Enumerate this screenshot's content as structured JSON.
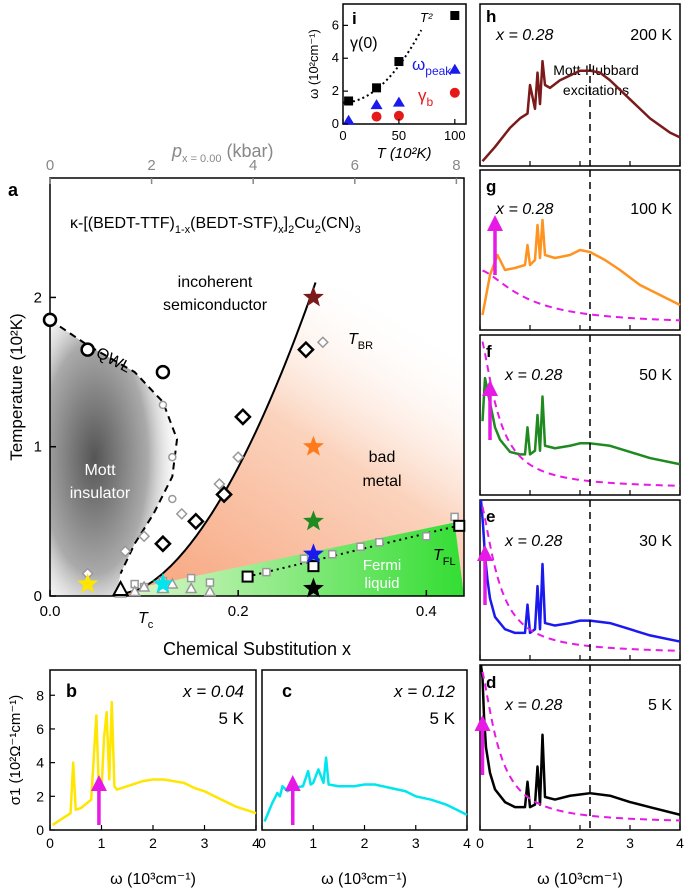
{
  "chart_data": [
    {
      "panel": "a",
      "type": "scatter",
      "title": "κ-[(BEDT-TTF)1-x(BEDT-STF)x]2Cu2(CN)3",
      "title_parts": {
        "p1": "κ-[(BEDT-TTF)",
        "s1": "1-x",
        "p2": "(BEDT-STF)",
        "s2": "x",
        "p3": "]",
        "s3": "2",
        "p4": "Cu",
        "s4": "2",
        "p5": "(CN)",
        "s5": "3"
      },
      "xlabel": "Chemical Substitution x",
      "ylabel": "Temperature (10²K)",
      "top_xlabel": "p",
      "top_xlabel_sub": "x = 0.00",
      "top_xlabel_unit": "(kbar)",
      "xlim": [
        0,
        0.44
      ],
      "ylim": [
        0,
        2.8
      ],
      "top_xlim": [
        0,
        8.15
      ],
      "x_ticks": [
        "0.0",
        "0.2",
        "0.4"
      ],
      "y_ticks": [
        "0",
        "1",
        "2"
      ],
      "top_ticks": [
        "0",
        "2",
        "4",
        "6",
        "8"
      ],
      "regions": {
        "mott": "Mott insulator",
        "mott_l1": "Mott",
        "mott_l2": "insulator",
        "incoherent_l1": "incoherent",
        "incoherent_l2": "semiconductor",
        "badmetal_l1": "bad",
        "badmetal_l2": "metal",
        "fermi_l1": "Fermi",
        "fermi_l2": "liquid"
      },
      "line_labels": {
        "qwl": "QWL",
        "tbr": "T",
        "tbr_sub": "BR",
        "tfl": "T",
        "tfl_sub": "FL",
        "tc": "T",
        "tc_sub": "c"
      },
      "qwl_circles": [
        [
          0.0,
          1.85
        ],
        [
          0.04,
          1.65
        ],
        [
          0.12,
          1.5
        ]
      ],
      "qwl_small_circles": [
        [
          0.12,
          1.28
        ],
        [
          0.13,
          0.93
        ],
        [
          0.13,
          0.65
        ]
      ],
      "tbr_diamonds": [
        [
          0.12,
          0.35
        ],
        [
          0.155,
          0.5
        ],
        [
          0.185,
          0.68
        ],
        [
          0.205,
          1.2
        ],
        [
          0.272,
          1.65
        ]
      ],
      "tbr_small_diamonds": [
        [
          0.04,
          0.15
        ],
        [
          0.08,
          0.3
        ],
        [
          0.1,
          0.4
        ],
        [
          0.14,
          0.55
        ],
        [
          0.18,
          0.75
        ],
        [
          0.2,
          0.93
        ],
        [
          0.29,
          1.7
        ]
      ],
      "tfl_squares": [
        [
          0.21,
          0.13
        ],
        [
          0.28,
          0.2
        ],
        [
          0.435,
          0.47
        ]
      ],
      "tfl_small_squares": [
        [
          0.09,
          0.08
        ],
        [
          0.1,
          0.06
        ],
        [
          0.12,
          0.1
        ],
        [
          0.15,
          0.12
        ],
        [
          0.17,
          0.09
        ],
        [
          0.21,
          0.13
        ],
        [
          0.23,
          0.16
        ],
        [
          0.27,
          0.25
        ],
        [
          0.3,
          0.28
        ],
        [
          0.33,
          0.33
        ],
        [
          0.35,
          0.36
        ],
        [
          0.4,
          0.4
        ],
        [
          0.43,
          0.53
        ]
      ],
      "tc_triangles": [
        [
          0.075,
          0.02
        ],
        [
          0.09,
          0.03
        ],
        [
          0.1,
          0.06
        ],
        [
          0.12,
          0.05
        ],
        [
          0.13,
          0.08
        ],
        [
          0.15,
          0.05
        ],
        [
          0.17,
          0.03
        ]
      ],
      "tc_open_triangle": [
        0.075,
        0.04
      ],
      "stars": [
        {
          "x": 0.04,
          "y": 0.08,
          "color": "#ffe600"
        },
        {
          "x": 0.12,
          "y": 0.08,
          "color": "#00e5ee"
        },
        {
          "x": 0.28,
          "y": 0.05,
          "color": "#000000"
        },
        {
          "x": 0.28,
          "y": 0.28,
          "color": "#1a1aee"
        },
        {
          "x": 0.28,
          "y": 0.5,
          "color": "#1f8a1f"
        },
        {
          "x": 0.28,
          "y": 1.0,
          "color": "#ff7a1a"
        },
        {
          "x": 0.28,
          "y": 2.0,
          "color": "#7a1a1a"
        }
      ]
    },
    {
      "panel": "i",
      "type": "scatter",
      "xlabel": "T (10²K)",
      "ylabel": "ω (10²cm⁻¹)",
      "xlim": [
        0,
        110
      ],
      "ylim": [
        0,
        7.3
      ],
      "x_ticks": [
        "0",
        "50",
        "100"
      ],
      "y_ticks": [
        "0",
        "2",
        "4",
        "6"
      ],
      "labels": {
        "gamma0": "γ(0)",
        "omega_peak": "ω",
        "omega_peak_sub": "peak",
        "gamma_b": "γ",
        "gamma_b_sub": "b",
        "t2": "T²"
      },
      "gamma0": [
        [
          5,
          1.4
        ],
        [
          30,
          2.2
        ],
        [
          50,
          3.8
        ],
        [
          100,
          6.6
        ]
      ],
      "omega_peak": [
        [
          5,
          0.2
        ],
        [
          30,
          1.15
        ],
        [
          50,
          1.3
        ],
        [
          100,
          3.3
        ]
      ],
      "gamma_b": [
        [
          30,
          0.45
        ],
        [
          50,
          0.5
        ],
        [
          100,
          1.9
        ]
      ]
    },
    {
      "panel": "b",
      "type": "line",
      "label_x": "x = 0.04",
      "label_T": "5 K",
      "color": "#ffe600",
      "xlim": [
        0,
        4
      ],
      "ylim": [
        0,
        9.5
      ],
      "xlabel": "ω (10³cm⁻¹)",
      "ylabel": "σ1 (10²Ω⁻¹cm⁻¹)",
      "x_ticks": [
        "0",
        "1",
        "2",
        "3",
        "4"
      ],
      "y_ticks": [
        "0",
        "2",
        "4",
        "6",
        "8"
      ],
      "arrow_x": 0.95,
      "x": [
        0.05,
        0.2,
        0.4,
        0.45,
        0.5,
        0.6,
        0.8,
        0.9,
        0.95,
        1.0,
        1.05,
        1.1,
        1.15,
        1.2,
        1.25,
        1.3,
        1.4,
        1.6,
        1.8,
        2.0,
        2.2,
        2.4,
        2.6,
        2.8,
        3.0,
        3.2,
        3.4,
        3.6,
        3.8,
        4.0
      ],
      "y": [
        0.3,
        0.6,
        1.0,
        4.0,
        1.2,
        1.3,
        1.8,
        6.8,
        2.3,
        2.4,
        5.5,
        7.0,
        3.0,
        7.6,
        2.6,
        2.4,
        2.5,
        2.7,
        2.9,
        3.0,
        3.0,
        2.9,
        2.8,
        2.5,
        2.3,
        2.0,
        1.7,
        1.4,
        1.2,
        1.0
      ]
    },
    {
      "panel": "c",
      "type": "line",
      "label_x": "x = 0.12",
      "label_T": "5 K",
      "color": "#00e5ee",
      "xlim": [
        0,
        4
      ],
      "ylim": [
        0,
        9.5
      ],
      "xlabel": "ω (10³cm⁻¹)",
      "x_ticks": [
        "0",
        "1",
        "2",
        "3",
        "4"
      ],
      "arrow_x": 0.6,
      "x": [
        0.05,
        0.2,
        0.3,
        0.35,
        0.4,
        0.5,
        0.6,
        0.8,
        0.9,
        0.95,
        1.0,
        1.1,
        1.2,
        1.25,
        1.3,
        1.5,
        1.8,
        2.0,
        2.2,
        2.5,
        2.8,
        3.0,
        3.3,
        3.6,
        3.8,
        4.0
      ],
      "y": [
        0.5,
        1.6,
        2.2,
        2.0,
        2.6,
        2.3,
        2.5,
        2.6,
        3.5,
        2.7,
        2.8,
        3.6,
        2.8,
        4.3,
        2.7,
        2.6,
        2.6,
        2.7,
        2.7,
        2.5,
        2.3,
        2.0,
        1.8,
        1.5,
        1.2,
        0.9
      ]
    },
    {
      "panel": "h",
      "type": "line",
      "label_x": "x = 0.28",
      "label_T": "200 K",
      "color": "#7a1a1a",
      "xlim": [
        0,
        4
      ],
      "annotation_l1": "Mott-Hubbard",
      "annotation_l2": "excitations",
      "x": [
        0.05,
        0.3,
        0.6,
        0.8,
        0.95,
        1.0,
        1.1,
        1.15,
        1.2,
        1.25,
        1.3,
        1.4,
        1.6,
        1.8,
        2.0,
        2.2,
        2.4,
        2.6,
        3.0,
        3.4,
        3.8,
        4.0
      ],
      "y": [
        0.05,
        0.2,
        0.4,
        0.5,
        0.55,
        0.85,
        0.6,
        0.98,
        0.65,
        1.1,
        0.85,
        0.82,
        0.9,
        0.95,
        1.0,
        1.0,
        0.98,
        0.9,
        0.7,
        0.5,
        0.35,
        0.3
      ]
    },
    {
      "panel": "g",
      "type": "line",
      "label_x": "x = 0.28",
      "label_T": "100 K",
      "color": "#ff9320",
      "xlim": [
        0,
        4
      ],
      "arrow_x": 0.3,
      "x": [
        0.05,
        0.2,
        0.35,
        0.5,
        0.7,
        0.9,
        0.95,
        1.0,
        1.1,
        1.15,
        1.2,
        1.25,
        1.3,
        1.5,
        1.8,
        2.0,
        2.2,
        2.5,
        2.8,
        3.2,
        3.6,
        4.0
      ],
      "y": [
        0.15,
        0.55,
        0.75,
        0.6,
        0.62,
        0.65,
        0.85,
        0.65,
        0.7,
        1.05,
        0.72,
        1.1,
        0.75,
        0.72,
        0.75,
        0.8,
        0.78,
        0.7,
        0.6,
        0.45,
        0.35,
        0.25
      ]
    },
    {
      "panel": "f",
      "type": "line",
      "label_x": "x = 0.28",
      "label_T": "50 K",
      "color": "#1f8a1f",
      "xlim": [
        0,
        4
      ],
      "arrow_x": 0.2,
      "x": [
        0.05,
        0.1,
        0.15,
        0.2,
        0.3,
        0.4,
        0.6,
        0.8,
        0.9,
        0.95,
        1.0,
        1.1,
        1.15,
        1.2,
        1.25,
        1.3,
        1.5,
        1.8,
        2.0,
        2.2,
        2.6,
        3.0,
        3.4,
        4.0
      ],
      "y": [
        0.6,
        0.95,
        0.85,
        0.75,
        0.55,
        0.45,
        0.35,
        0.33,
        0.33,
        0.55,
        0.33,
        0.36,
        0.65,
        0.36,
        0.8,
        0.4,
        0.38,
        0.4,
        0.42,
        0.42,
        0.4,
        0.35,
        0.3,
        0.25
      ]
    },
    {
      "panel": "e",
      "type": "line",
      "label_x": "x = 0.28",
      "label_T": "30 K",
      "color": "#1a1aee",
      "xlim": [
        0,
        4
      ],
      "arrow_x": 0.1,
      "x": [
        0.02,
        0.06,
        0.1,
        0.15,
        0.2,
        0.3,
        0.5,
        0.7,
        0.9,
        0.95,
        1.0,
        1.1,
        1.15,
        1.2,
        1.25,
        1.3,
        1.5,
        1.8,
        2.0,
        2.2,
        2.6,
        3.0,
        3.4,
        4.0
      ],
      "y": [
        1.4,
        1.1,
        0.85,
        0.65,
        0.5,
        0.35,
        0.25,
        0.22,
        0.22,
        0.45,
        0.22,
        0.25,
        0.6,
        0.25,
        0.78,
        0.3,
        0.28,
        0.3,
        0.32,
        0.32,
        0.3,
        0.25,
        0.2,
        0.15
      ]
    },
    {
      "panel": "d",
      "type": "line",
      "label_x": "x = 0.28",
      "label_T": "5 K",
      "color": "#000000",
      "xlim": [
        0,
        4
      ],
      "arrow_x": 0.05,
      "xlabel": "ω (10³cm⁻¹)",
      "x_ticks": [
        "0",
        "1",
        "2",
        "3",
        "4"
      ],
      "x": [
        0.02,
        0.05,
        0.08,
        0.12,
        0.2,
        0.3,
        0.5,
        0.7,
        0.9,
        0.95,
        1.0,
        1.1,
        1.15,
        1.2,
        1.25,
        1.3,
        1.5,
        1.8,
        2.0,
        2.2,
        2.6,
        3.0,
        3.4,
        4.0
      ],
      "y": [
        1.6,
        1.2,
        0.9,
        0.65,
        0.45,
        0.32,
        0.22,
        0.18,
        0.18,
        0.38,
        0.18,
        0.2,
        0.5,
        0.2,
        0.75,
        0.26,
        0.24,
        0.27,
        0.28,
        0.29,
        0.27,
        0.22,
        0.18,
        0.12
      ]
    }
  ]
}
